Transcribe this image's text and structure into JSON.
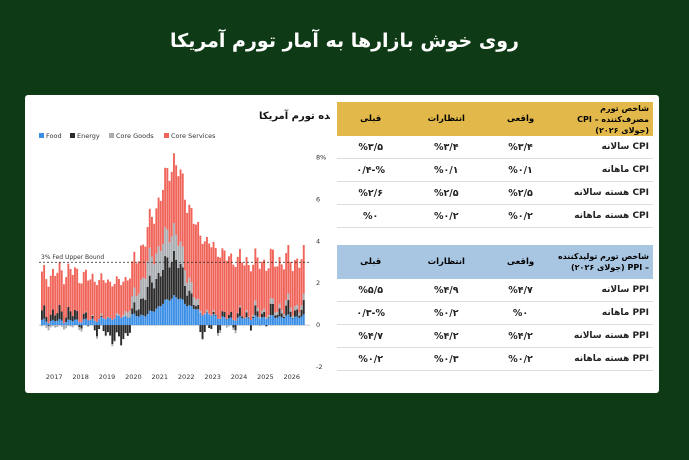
{
  "headline": "روی خوش بازارها به آمار تورم آمریکا",
  "chart_data": {
    "type": "bar",
    "title": "اجزای تشکیل‌دهنده تورم آمریکا",
    "stacked": true,
    "legend_position": "top-left",
    "series": [
      {
        "name": "Food",
        "color": "#3a8ee6"
      },
      {
        "name": "Energy",
        "color": "#2b2b2b"
      },
      {
        "name": "Core Goods",
        "color": "#a9adb2"
      },
      {
        "name": "Core Services",
        "color": "#f0645a"
      }
    ],
    "x_tick_labels": [
      "2017",
      "2018",
      "2019",
      "2020",
      "2021",
      "2022",
      "2023",
      "2024",
      "2025",
      "2026"
    ],
    "y_tick_labels": [
      "8%",
      "6",
      "4",
      "2",
      "0",
      "-2"
    ],
    "ylim": [
      -2,
      8.5
    ],
    "reference_line": {
      "value": 3,
      "label": "3% Fed Upper Bound"
    },
    "annual_values": [
      {
        "year": "2017",
        "food": 0.2,
        "energy": 0.3,
        "core_goods": -0.1,
        "core_services": 1.8
      },
      {
        "year": "2018",
        "food": 0.2,
        "energy": 0.4,
        "core_goods": -0.1,
        "core_services": 2.0
      },
      {
        "year": "2019",
        "food": 0.25,
        "energy": -0.1,
        "core_goods": 0.0,
        "core_services": 1.9
      },
      {
        "year": "2020",
        "food": 0.4,
        "energy": -0.8,
        "core_goods": 0.0,
        "core_services": 1.6
      },
      {
        "year": "2021",
        "food": 0.5,
        "energy": 1.2,
        "core_goods": 1.2,
        "core_services": 1.6
      },
      {
        "year": "2022",
        "food": 1.4,
        "energy": 2.0,
        "core_goods": 1.3,
        "core_services": 3.3
      },
      {
        "year": "2023",
        "food": 0.6,
        "energy": -0.3,
        "core_goods": 0.1,
        "core_services": 3.6
      },
      {
        "year": "2024",
        "food": 0.3,
        "energy": 0.1,
        "core_goods": -0.1,
        "core_services": 2.8
      },
      {
        "year": "2025",
        "food": 0.35,
        "energy": 0.1,
        "core_goods": 0.1,
        "core_services": 2.4
      },
      {
        "year": "2026",
        "food": 0.4,
        "energy": 0.3,
        "core_goods": 0.2,
        "core_services": 2.2
      }
    ]
  },
  "cpi_table": {
    "header_title": "شاخص تورم مصرف‌کننده – CPI (جولای ۲۰۲۶)",
    "col_actual": "واقعی",
    "col_expected": "انتظارات",
    "col_previous": "قبلی",
    "rows": [
      {
        "label": "CPI سالانه",
        "actual": "%۳/۴",
        "expected": "%۳/۴",
        "previous": "%۳/۵"
      },
      {
        "label": "CPI ماهانه",
        "actual": "%۰/۱",
        "expected": "%۰/۱",
        "previous": "%-۰/۴"
      },
      {
        "label": "CPI هسته سالانه",
        "actual": "%۲/۵",
        "expected": "%۲/۵",
        "previous": "%۲/۶"
      },
      {
        "label": "CPI هسته ماهانه",
        "actual": "%۰/۲",
        "expected": "%۰/۲",
        "previous": "%۰"
      }
    ]
  },
  "ppi_table": {
    "header_title": "شاخص تورم تولیدکننده – PPI (جولای ۲۰۲۶)",
    "col_actual": "واقعی",
    "col_expected": "انتظارات",
    "col_previous": "قبلی",
    "rows": [
      {
        "label": "PPI سالانه",
        "actual": "%۴/۷",
        "expected": "%۴/۹",
        "previous": "%۵/۵"
      },
      {
        "label": "PPI ماهانه",
        "actual": "%۰",
        "expected": "%۰/۲",
        "previous": "%-۰/۳"
      },
      {
        "label": "PPI هسته سالانه",
        "actual": "%۴/۲",
        "expected": "%۴/۲",
        "previous": "%۴/۷"
      },
      {
        "label": "PPI هسته ماهانه",
        "actual": "%۰/۲",
        "expected": "%۰/۳",
        "previous": "%۰/۲"
      }
    ]
  }
}
